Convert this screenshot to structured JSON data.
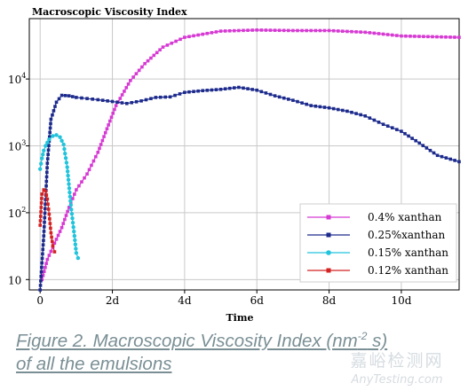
{
  "chart_data": {
    "type": "line",
    "title": "Macroscopic Viscosity Index",
    "xlabel": "Time",
    "ylabel": "",
    "y_scale": "log",
    "xlim_days": [
      -0.3,
      11.6
    ],
    "ylim": [
      7,
      80000
    ],
    "x_ticks": [
      {
        "value": 0,
        "label": "0"
      },
      {
        "value": 2,
        "label": "2d"
      },
      {
        "value": 4,
        "label": "4d"
      },
      {
        "value": 6,
        "label": "6d"
      },
      {
        "value": 8,
        "label": "8d"
      },
      {
        "value": 10,
        "label": "10d"
      }
    ],
    "y_ticks": [
      {
        "value": 10,
        "label": "10"
      },
      {
        "value": 100,
        "label": "10",
        "exp": "2"
      },
      {
        "value": 1000,
        "label": "10",
        "exp": "3"
      },
      {
        "value": 10000,
        "label": "10",
        "exp": "4"
      }
    ],
    "grid": true,
    "legend_position": "bottom-right",
    "series": [
      {
        "name": "0.4% xanthan",
        "color": "#d63ad3",
        "marker": "square",
        "points": [
          [
            0.05,
            10
          ],
          [
            0.2,
            20
          ],
          [
            0.4,
            35
          ],
          [
            0.6,
            60
          ],
          [
            0.8,
            120
          ],
          [
            1.0,
            220
          ],
          [
            1.3,
            380
          ],
          [
            1.6,
            800
          ],
          [
            1.85,
            1800
          ],
          [
            2.1,
            4000
          ],
          [
            2.5,
            9500
          ],
          [
            2.9,
            17000
          ],
          [
            3.4,
            30000
          ],
          [
            4.0,
            42000
          ],
          [
            5.0,
            52000
          ],
          [
            6.0,
            54000
          ],
          [
            7.0,
            53000
          ],
          [
            8.0,
            53000
          ],
          [
            9.0,
            50000
          ],
          [
            10.0,
            44000
          ],
          [
            11.6,
            42000
          ]
        ]
      },
      {
        "name": "0.25%xanthan",
        "color": "#1c2a8c",
        "marker": "square",
        "points": [
          [
            0.0,
            7
          ],
          [
            0.1,
            45
          ],
          [
            0.2,
            550
          ],
          [
            0.3,
            2500
          ],
          [
            0.45,
            4500
          ],
          [
            0.6,
            5700
          ],
          [
            0.8,
            5600
          ],
          [
            1.0,
            5300
          ],
          [
            1.3,
            5100
          ],
          [
            1.6,
            4900
          ],
          [
            2.0,
            4600
          ],
          [
            2.4,
            4300
          ],
          [
            2.8,
            4700
          ],
          [
            3.2,
            5300
          ],
          [
            3.6,
            5400
          ],
          [
            4.0,
            6300
          ],
          [
            4.5,
            6700
          ],
          [
            5.0,
            7000
          ],
          [
            5.5,
            7500
          ],
          [
            6.0,
            6800
          ],
          [
            6.5,
            5600
          ],
          [
            7.0,
            4800
          ],
          [
            7.5,
            4000
          ],
          [
            8.0,
            3700
          ],
          [
            8.5,
            3300
          ],
          [
            9.0,
            2800
          ],
          [
            9.5,
            2100
          ],
          [
            10.0,
            1650
          ],
          [
            10.5,
            1100
          ],
          [
            11.0,
            720
          ],
          [
            11.6,
            580
          ]
        ]
      },
      {
        "name": "0.15% xanthan",
        "color": "#22c4dc",
        "marker": "circle",
        "points": [
          [
            0.0,
            450
          ],
          [
            0.05,
            650
          ],
          [
            0.1,
            850
          ],
          [
            0.15,
            1000
          ],
          [
            0.25,
            1250
          ],
          [
            0.35,
            1400
          ],
          [
            0.45,
            1450
          ],
          [
            0.55,
            1350
          ],
          [
            0.65,
            1050
          ],
          [
            0.75,
            480
          ],
          [
            0.85,
            130
          ],
          [
            0.95,
            45
          ],
          [
            1.0,
            25
          ],
          [
            1.05,
            21
          ]
        ]
      },
      {
        "name": "0.12% xanthan",
        "color": "#d42222",
        "marker": "square",
        "points": [
          [
            0.0,
            65
          ],
          [
            0.05,
            190
          ],
          [
            0.1,
            220
          ],
          [
            0.15,
            210
          ],
          [
            0.2,
            160
          ],
          [
            0.25,
            95
          ],
          [
            0.3,
            50
          ],
          [
            0.35,
            32
          ],
          [
            0.4,
            26
          ]
        ]
      }
    ]
  },
  "caption": {
    "line1_pre": "Figure 2. Macroscopic Viscosity Index (nm",
    "line1_exp": "-2",
    "line1_post": " s)",
    "line2": "of all the emulsions"
  },
  "watermark": {
    "line1": "嘉峪检测网",
    "line2": "AnyTesting.com"
  }
}
